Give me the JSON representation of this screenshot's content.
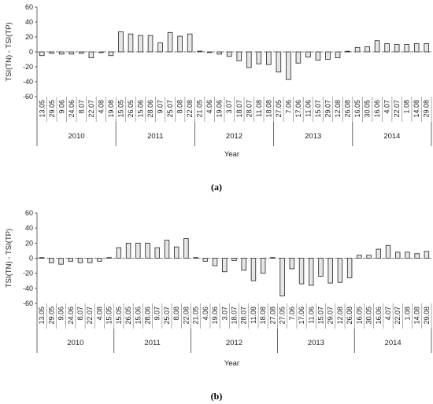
{
  "chart_data": [
    {
      "type": "bar",
      "panel_label": "(a)",
      "ylabel": "TSI(TN) - TSI(TP)",
      "xlabel": "Year",
      "ylim": [
        -60,
        60
      ],
      "yticks": [
        60,
        40,
        20,
        0,
        -20,
        -40,
        -60
      ],
      "grid": false,
      "categories": [
        "13.05",
        "29.05",
        "9.06",
        "24.06",
        "8.07",
        "22.07",
        "4.08",
        "19.08",
        "15.05",
        "26.05",
        "15.06",
        "28.06",
        "9.07",
        "25.07",
        "8.08",
        "22.08",
        "21.05",
        "4.06",
        "19.06",
        "3.07",
        "18.07",
        "28.07",
        "11.08",
        "18.08",
        "27.05",
        "7.06",
        "17.06",
        "11.06",
        "15.07",
        "29.07",
        "12.08",
        "26.08",
        "16.05",
        "30.05",
        "16.06",
        "4.07",
        "22.07",
        "1.08",
        "14.08",
        "29.08"
      ],
      "years": [
        {
          "label": "2010",
          "count": 8
        },
        {
          "label": "2011",
          "count": 8
        },
        {
          "label": "2012",
          "count": 8
        },
        {
          "label": "2013",
          "count": 8
        },
        {
          "label": "2014",
          "count": 8
        }
      ],
      "values": [
        -5,
        -2,
        -3,
        -3,
        -2,
        -8,
        -1,
        -5,
        27,
        24,
        22,
        22,
        12,
        26,
        21,
        24,
        1,
        -1,
        -3,
        -6,
        -12,
        -21,
        -16,
        -17,
        -27,
        -37,
        -15,
        -7,
        -11,
        -10,
        -8,
        0,
        6,
        7,
        15,
        11,
        10,
        10,
        11,
        11
      ]
    },
    {
      "type": "bar",
      "panel_label": "(b)",
      "ylabel": "TSI(TN) - TSI(TP)",
      "xlabel": "Year",
      "ylim": [
        -60,
        60
      ],
      "yticks": [
        60,
        40,
        20,
        0,
        -20,
        -40,
        -60
      ],
      "grid": false,
      "categories": [
        "13.05",
        "29.05",
        "9.06",
        "24.06",
        "8.07",
        "22.07",
        "4.08",
        "15.05",
        "15.05",
        "26.05",
        "15.06",
        "28.06",
        "9.07",
        "25.07",
        "8.08",
        "22.08",
        "21.05",
        "4.06",
        "19.06",
        "3.07",
        "18.07",
        "28.07",
        "11.08",
        "18.08",
        "27.08",
        "27.05",
        "7.06",
        "17.06",
        "11.06",
        "15.07",
        "29.07",
        "12.08",
        "26.08",
        "16.05",
        "30.05",
        "16.06",
        "4.07",
        "22.07",
        "1.08",
        "14.08",
        "29.08"
      ],
      "years": [
        {
          "label": "2010",
          "count": 8
        },
        {
          "label": "2011",
          "count": 8
        },
        {
          "label": "2012",
          "count": 9
        },
        {
          "label": "2013",
          "count": 8
        },
        {
          "label": "2014",
          "count": 8
        }
      ],
      "values": [
        0,
        -6,
        -8,
        -4,
        -6,
        -6,
        -4,
        0,
        14,
        20,
        20,
        20,
        14,
        24,
        15,
        26,
        0,
        -4,
        -10,
        -18,
        -3,
        -16,
        -30,
        -20,
        0,
        -50,
        -14,
        -34,
        -36,
        -24,
        -33,
        -32,
        -26,
        4,
        4,
        12,
        17,
        8,
        8,
        6,
        9
      ]
    }
  ]
}
